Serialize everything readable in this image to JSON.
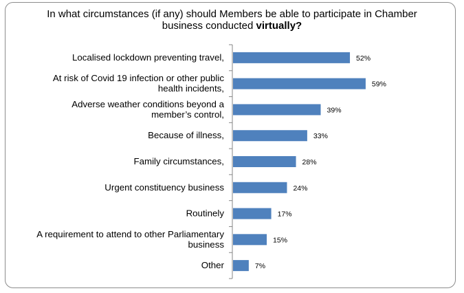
{
  "title": {
    "text": "In what circumstances (if any) should Members be able to participate in Chamber business conducted",
    "emphasis": "virtually?"
  },
  "chart_data": {
    "type": "bar",
    "orientation": "horizontal",
    "categories": [
      [
        "Localised lockdown preventing travel,"
      ],
      [
        "At risk of Covid 19 infection or other public",
        "health incidents,"
      ],
      [
        "Adverse weather conditions beyond a",
        "member’s control,"
      ],
      [
        "Because of illness,"
      ],
      [
        "Family circumstances,"
      ],
      [
        "Urgent constituency business"
      ],
      [
        "Routinely"
      ],
      [
        "A requirement to attend to other Parliamentary",
        "business"
      ],
      [
        "Other"
      ]
    ],
    "values": [
      52,
      59,
      39,
      33,
      28,
      24,
      17,
      15,
      7
    ],
    "value_labels": [
      "52%",
      "59%",
      "39%",
      "33%",
      "28%",
      "24%",
      "17%",
      "15%",
      "7%"
    ],
    "xlim": [
      0,
      100
    ],
    "bar_color": "#4f81bd",
    "axis_color": "#868686",
    "grid": false,
    "legend": "none"
  }
}
